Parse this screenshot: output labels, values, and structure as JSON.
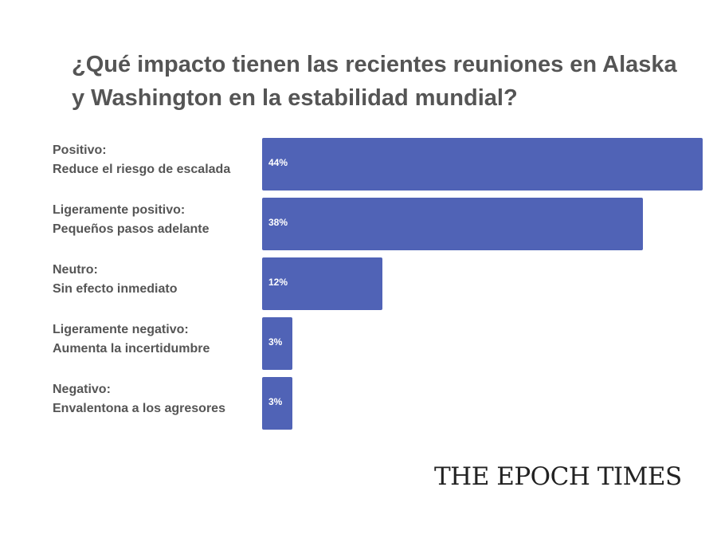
{
  "chart_data": {
    "type": "bar",
    "orientation": "horizontal",
    "title": "¿Qué impacto tienen las recientes reuniones en Alaska y Washington en la estabilidad mundial?",
    "categories": [
      [
        "Positivo:",
        "Reduce el riesgo de escalada"
      ],
      [
        "Ligeramente positivo:",
        "Pequeños pasos adelante"
      ],
      [
        "Neutro:",
        "Sin efecto inmediato"
      ],
      [
        "Ligeramente negativo:",
        "Aumenta la incertidumbre"
      ],
      [
        "Negativo:",
        "Envalentona a los agresores"
      ]
    ],
    "values": [
      44,
      38,
      12,
      3,
      3
    ],
    "value_labels": [
      "44%",
      "38%",
      "12%",
      "3%",
      "3%"
    ],
    "xlim": [
      0,
      44
    ],
    "bar_color": "#5063b6",
    "grid": false,
    "legend": "none"
  },
  "brand": "THE EPOCH TIMES"
}
